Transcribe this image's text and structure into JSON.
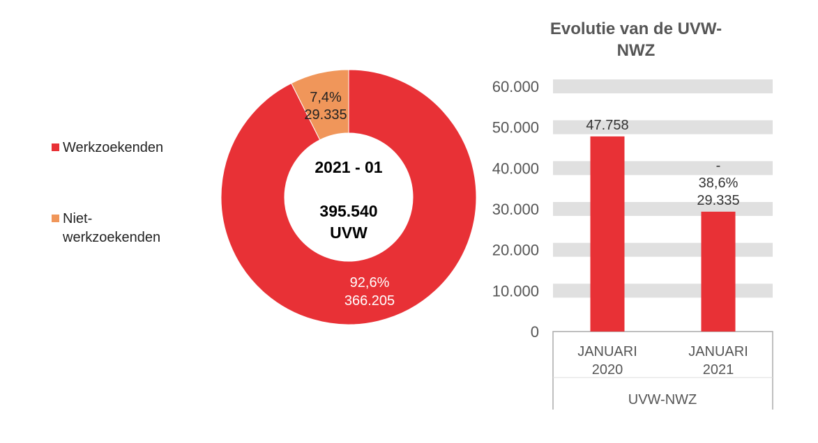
{
  "chart_data": [
    {
      "type": "pie",
      "variant": "donut",
      "center_label": {
        "period": "2021 - 01",
        "total": "395.540",
        "unit": "UVW"
      },
      "legend": {
        "position": "left",
        "entries": [
          "Werkzoekenden",
          "Niet-werkzoekenden"
        ]
      },
      "slices": [
        {
          "name": "Werkzoekenden",
          "value": 366205,
          "percent_label": "92,6%",
          "value_label": "366.205",
          "color": "#E83136"
        },
        {
          "name": "Niet-werkzoekenden",
          "value": 29335,
          "percent_label": "7,4%",
          "value_label": "29.335",
          "color": "#F0965A"
        }
      ]
    },
    {
      "type": "bar",
      "title": "Evolutie van de UVW-NWZ",
      "categories": [
        "JANUARI 2020",
        "JANUARI 2021"
      ],
      "category_lines": [
        [
          "JANUARI",
          "2020"
        ],
        [
          "JANUARI",
          "2021"
        ]
      ],
      "group_label": "UVW-NWZ",
      "values": [
        47758,
        29335
      ],
      "data_labels": [
        [
          "47.758"
        ],
        [
          "-",
          "38,6%",
          "29.335"
        ]
      ],
      "ylim": [
        0,
        60000
      ],
      "yticks": [
        0,
        10000,
        20000,
        30000,
        40000,
        50000,
        60000
      ],
      "ytick_labels": [
        "0",
        "10.000",
        "20.000",
        "30.000",
        "40.000",
        "50.000",
        "60.000"
      ],
      "grid": true,
      "bar_color": "#E83136",
      "grid_color": "#E0E0E0"
    }
  ]
}
